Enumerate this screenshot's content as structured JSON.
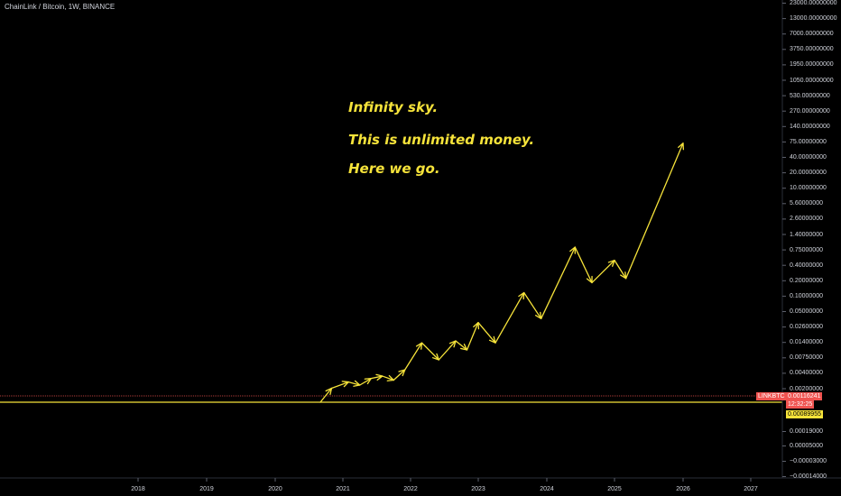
{
  "header": {
    "title": "ChainLink / Bitcoin, 1W, BINANCE"
  },
  "annotations": [
    "Infinity sky.",
    "This is unlimited money.",
    "Here we go."
  ],
  "price_axis": {
    "labels": [
      "23000.00000000",
      "13000.00000000",
      "7000.00000000",
      "3750.00000000",
      "1950.00000000",
      "1050.00000000",
      "530.00000000",
      "270.00000000",
      "140.00000000",
      "75.00000000",
      "40.00000000",
      "20.00000000",
      "10.00000000",
      "5.60000000",
      "2.60000000",
      "1.40000000",
      "0.75000000",
      "0.40000000",
      "0.20000000",
      "0.10000000",
      "0.05000000",
      "0.02600000",
      "0.01400000",
      "0.00750000",
      "0.00400000",
      "0.00200000",
      "0.00019000",
      "0.00005000",
      "−0.00003000",
      "−0.00014000"
    ]
  },
  "time_axis": {
    "labels": [
      "2018",
      "2019",
      "2020",
      "2021",
      "2022",
      "2023",
      "2024",
      "2025",
      "2026",
      "2027"
    ]
  },
  "tags": {
    "symbol": "LINKBTC",
    "last_price": "0.00116241",
    "countdown": "12:32:25",
    "level_price": "0.00089955"
  },
  "colors": {
    "background": "#000000",
    "annotation": "#f6e33a",
    "level_line": "#f6e33a",
    "price_line": "#ef5350",
    "candle_up": "#26a69a",
    "candle_down": "#ef5350"
  },
  "chart_data": {
    "type": "candlestick",
    "title": "ChainLink / Bitcoin, 1W, BINANCE",
    "interval": "1W",
    "y_scale": "log",
    "horizontal_level": 0.00089955,
    "last_price": 0.00116241,
    "price_history": [
      [
        "2017-09",
        0.0001
      ],
      [
        "2017-10",
        5e-05
      ],
      [
        "2017-11",
        5e-05
      ],
      [
        "2018-01",
        4e-05
      ],
      [
        "2018-03",
        3e-05
      ],
      [
        "2018-06",
        4e-05
      ],
      [
        "2018-09",
        3e-05
      ],
      [
        "2018-12",
        6e-05
      ],
      [
        "2019-03",
        8e-05
      ],
      [
        "2019-06",
        0.0001
      ],
      [
        "2019-07",
        0.0004
      ],
      [
        "2019-09",
        0.0002
      ],
      [
        "2019-12",
        0.0002
      ],
      [
        "2020-03",
        0.0004
      ],
      [
        "2020-06",
        0.0005
      ],
      [
        "2020-07",
        0.0008
      ],
      [
        "2020-08",
        0.00135
      ]
    ],
    "projection_path": [
      [
        "2020-09",
        0.0009
      ],
      [
        "2020-11",
        0.0017
      ],
      [
        "2021-02",
        0.0023
      ],
      [
        "2021-04",
        0.002
      ],
      [
        "2021-06",
        0.0027
      ],
      [
        "2021-08",
        0.003
      ],
      [
        "2021-10",
        0.0025
      ],
      [
        "2021-12",
        0.004
      ],
      [
        "2022-03",
        0.012
      ],
      [
        "2022-06",
        0.006
      ],
      [
        "2022-09",
        0.013
      ],
      [
        "2022-11",
        0.009
      ],
      [
        "2023-01",
        0.028
      ],
      [
        "2023-04",
        0.012
      ],
      [
        "2023-09",
        0.098
      ],
      [
        "2023-12",
        0.033
      ],
      [
        "2024-06",
        0.69
      ],
      [
        "2024-09",
        0.15
      ],
      [
        "2025-01",
        0.39
      ],
      [
        "2025-03",
        0.18
      ],
      [
        "2026-01",
        60
      ]
    ]
  }
}
